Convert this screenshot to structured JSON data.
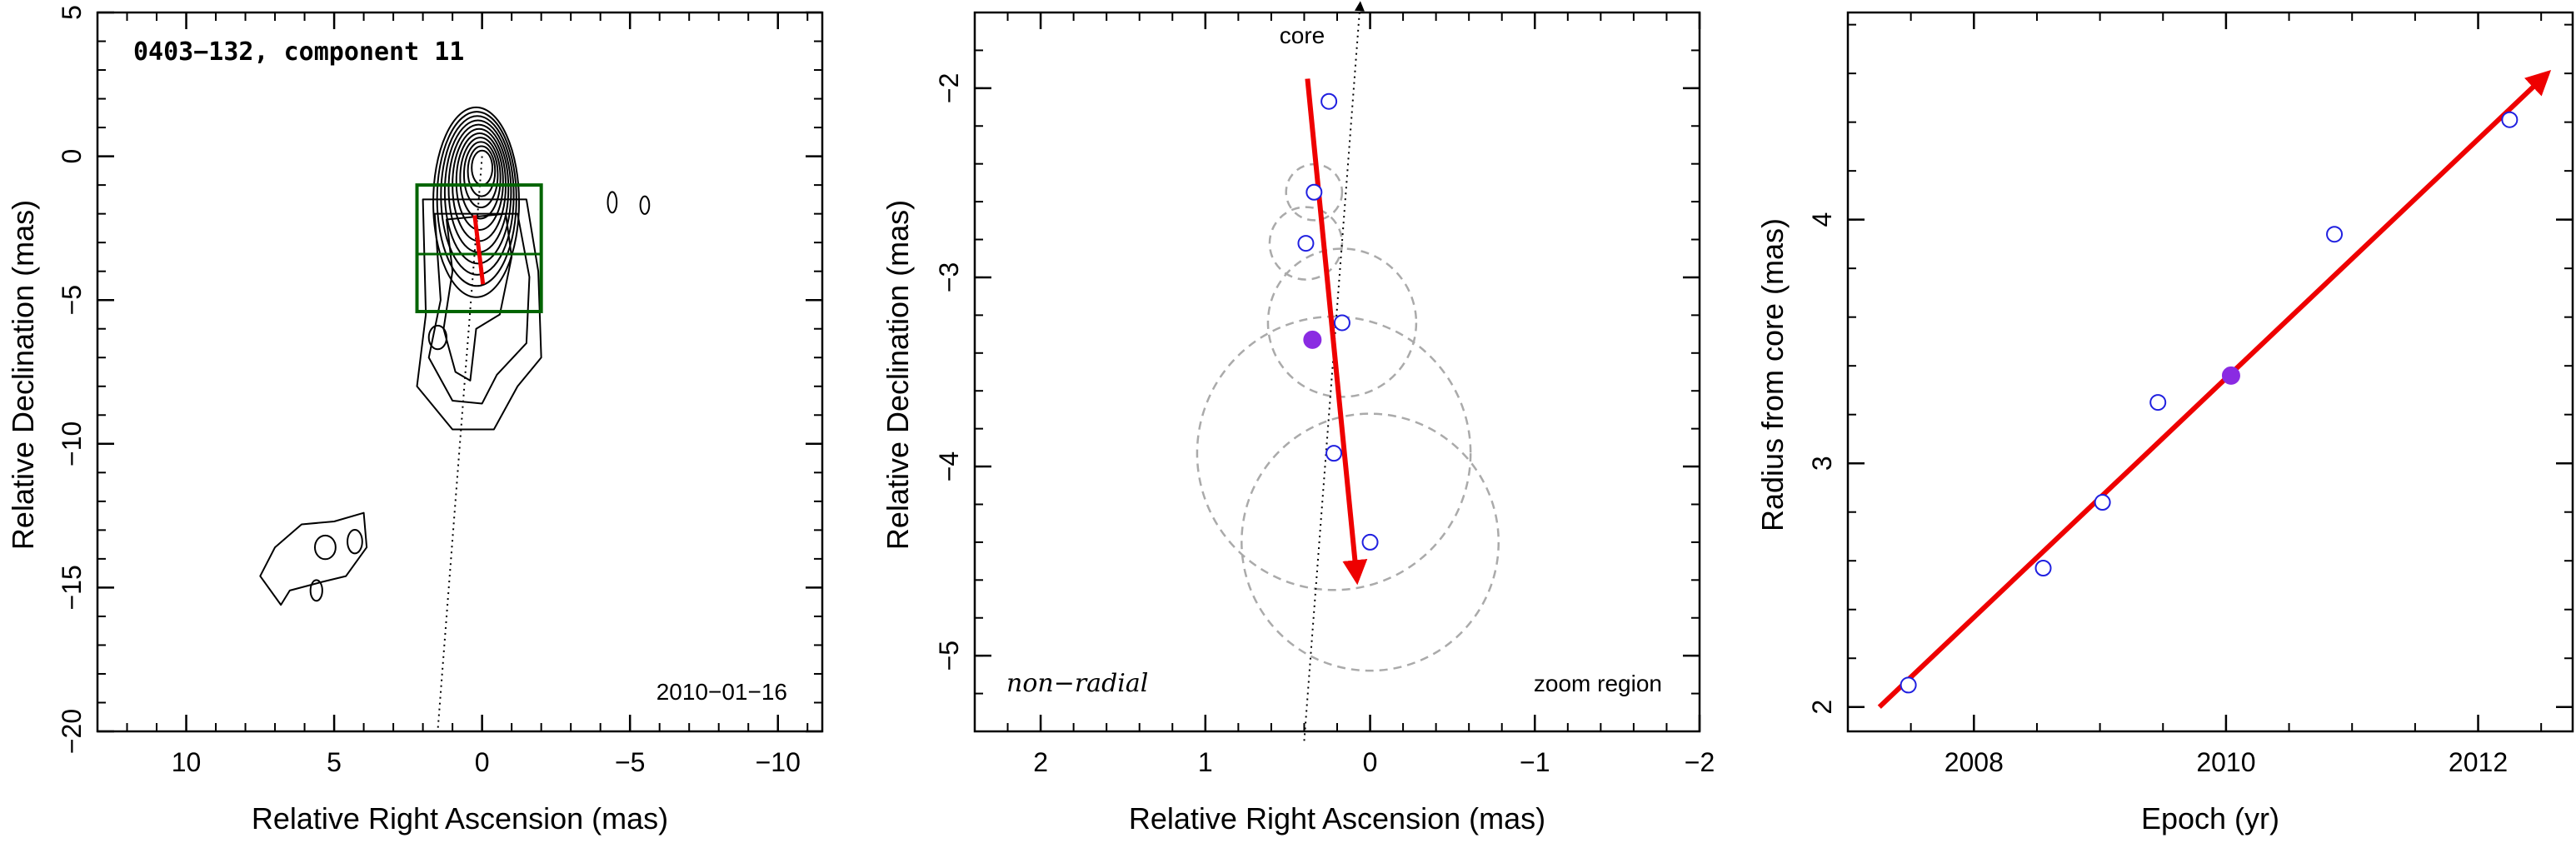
{
  "chart_data": [
    {
      "type": "contour",
      "title": "0403−132, component 11",
      "date_label": "2010−01−16",
      "xlabel": "Relative Right Ascension (mas)",
      "ylabel": "Relative Declination (mas)",
      "xlim": [
        13,
        -11.5
      ],
      "ylim": [
        -20,
        5
      ],
      "x_ticks": [
        10,
        5,
        0,
        -5,
        -10
      ],
      "x_tick_labels": [
        "10",
        "5",
        "0",
        "−5",
        "−10"
      ],
      "y_ticks": [
        5,
        0,
        -5,
        -10,
        -15,
        -20
      ],
      "y_tick_labels": [
        "5",
        "0",
        "−5",
        "−10",
        "−15",
        "−20"
      ],
      "zoom_box": {
        "x": [
          2.2,
          -2.0
        ],
        "y": [
          -1.0,
          -5.4
        ],
        "crosshair_y": -3.4
      },
      "jet_axis_line": {
        "from": [
          0,
          0
        ],
        "to": [
          1.5,
          -20
        ]
      },
      "motion_arrow": {
        "from": [
          0.25,
          -2.05
        ],
        "to": [
          -0.03,
          -4.45
        ]
      },
      "contour_color": "#000000"
    },
    {
      "type": "scatter",
      "xlabel": "Relative Right Ascension (mas)",
      "ylabel": "Relative Declination (mas)",
      "xlim": [
        2.4,
        -2.0
      ],
      "ylim": [
        -5.4,
        -1.6
      ],
      "x_ticks": [
        2,
        1,
        0,
        -1,
        -2
      ],
      "x_tick_labels": [
        "2",
        "1",
        "0",
        "−1",
        "−2"
      ],
      "y_ticks": [
        -2,
        -3,
        -4,
        -5
      ],
      "y_tick_labels": [
        "−2",
        "−3",
        "−4",
        "−5"
      ],
      "core_label": "core",
      "left_label": "non−radial",
      "right_label": "zoom region",
      "positions": [
        {
          "x": 0.25,
          "y": -2.07,
          "size": 0.0,
          "highlight": false
        },
        {
          "x": 0.34,
          "y": -2.55,
          "size": 0.17,
          "highlight": false
        },
        {
          "x": 0.39,
          "y": -2.82,
          "size": 0.22,
          "highlight": false
        },
        {
          "x": 0.17,
          "y": -3.24,
          "size": 0.45,
          "highlight": false
        },
        {
          "x": 0.35,
          "y": -3.33,
          "size": 0.0,
          "highlight": true
        },
        {
          "x": 0.22,
          "y": -3.93,
          "size": 0.83,
          "highlight": false
        },
        {
          "x": 0.0,
          "y": -4.4,
          "size": 0.78,
          "highlight": false
        }
      ],
      "core_line": {
        "from": [
          0.4,
          -5.45
        ],
        "to": [
          0.06,
          -1.55
        ]
      },
      "motion_arrow": {
        "from": [
          0.38,
          -1.95
        ],
        "to": [
          0.08,
          -4.6
        ]
      }
    },
    {
      "type": "scatter",
      "xlabel": "Epoch (yr)",
      "ylabel": "Radius from core (mas)",
      "xlim": [
        2007.0,
        2012.75
      ],
      "ylim": [
        1.9,
        4.85
      ],
      "x_ticks": [
        2008,
        2010,
        2012
      ],
      "y_ticks": [
        2,
        3,
        4
      ],
      "x": [
        2007.48,
        2008.55,
        2009.02,
        2009.46,
        2010.04,
        2010.86,
        2012.25
      ],
      "y": [
        2.09,
        2.57,
        2.84,
        3.25,
        3.36,
        3.94,
        4.41
      ],
      "highlight_index": 4,
      "fit_arrow": {
        "from": [
          2007.25,
          2.0
        ],
        "to": [
          2012.55,
          4.6
        ]
      },
      "colors": {
        "point": "#2020e0",
        "highlight": "#8a2be2",
        "fit": "#ee0000",
        "box": "#006400"
      }
    }
  ]
}
